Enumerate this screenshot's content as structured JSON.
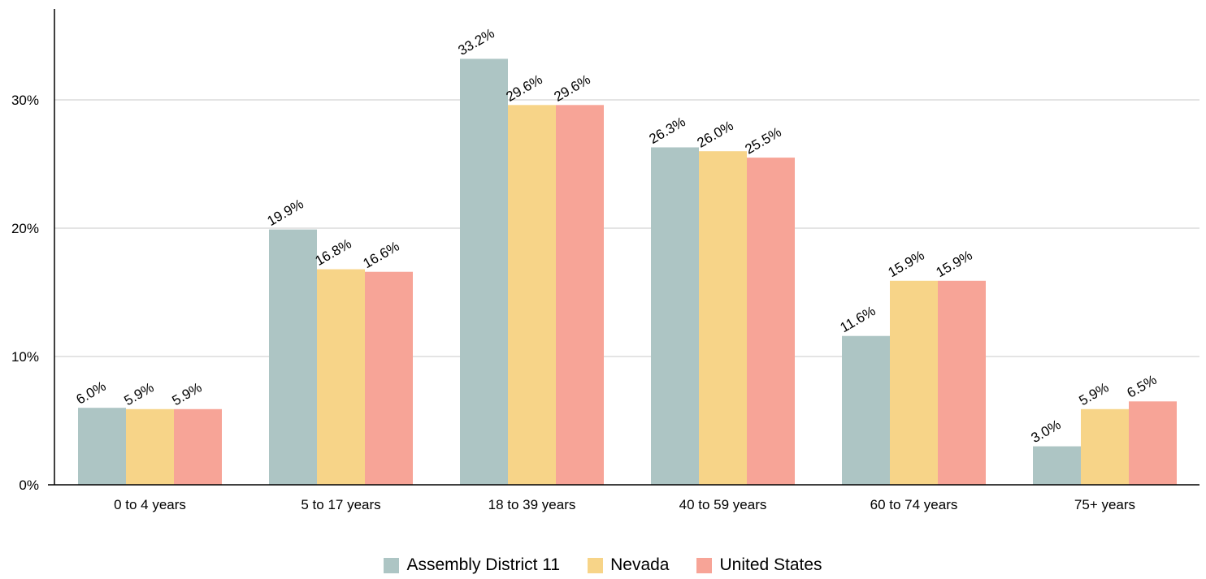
{
  "chart_data": {
    "type": "bar",
    "categories": [
      "0 to 4 years",
      "5 to 17 years",
      "18 to 39 years",
      "40 to 59 years",
      "60 to 74 years",
      "75+ years"
    ],
    "series": [
      {
        "name": "Assembly District 11",
        "color": "#adc5c4",
        "values": [
          6.0,
          19.9,
          33.2,
          26.3,
          11.6,
          3.0
        ],
        "labels": [
          "6.0%",
          "19.9%",
          "33.2%",
          "26.3%",
          "11.6%",
          "3.0%"
        ]
      },
      {
        "name": "Nevada",
        "color": "#f7d488",
        "values": [
          5.9,
          16.8,
          29.6,
          26.0,
          15.9,
          5.9
        ],
        "labels": [
          "5.9%",
          "16.8%",
          "29.6%",
          "26.0%",
          "15.9%",
          "5.9%"
        ]
      },
      {
        "name": "United States",
        "color": "#f7a497",
        "values": [
          5.9,
          16.6,
          29.6,
          25.5,
          15.9,
          6.5
        ],
        "labels": [
          "5.9%",
          "16.6%",
          "29.6%",
          "25.5%",
          "15.9%",
          "6.5%"
        ]
      }
    ],
    "y_ticks": [
      0,
      10,
      20,
      30
    ],
    "y_tick_labels": [
      "0%",
      "10%",
      "20%",
      "30%"
    ],
    "ylim": [
      0,
      37
    ],
    "grid": true,
    "legend_position": "bottom-center",
    "title": "",
    "xlabel": "",
    "ylabel": ""
  }
}
